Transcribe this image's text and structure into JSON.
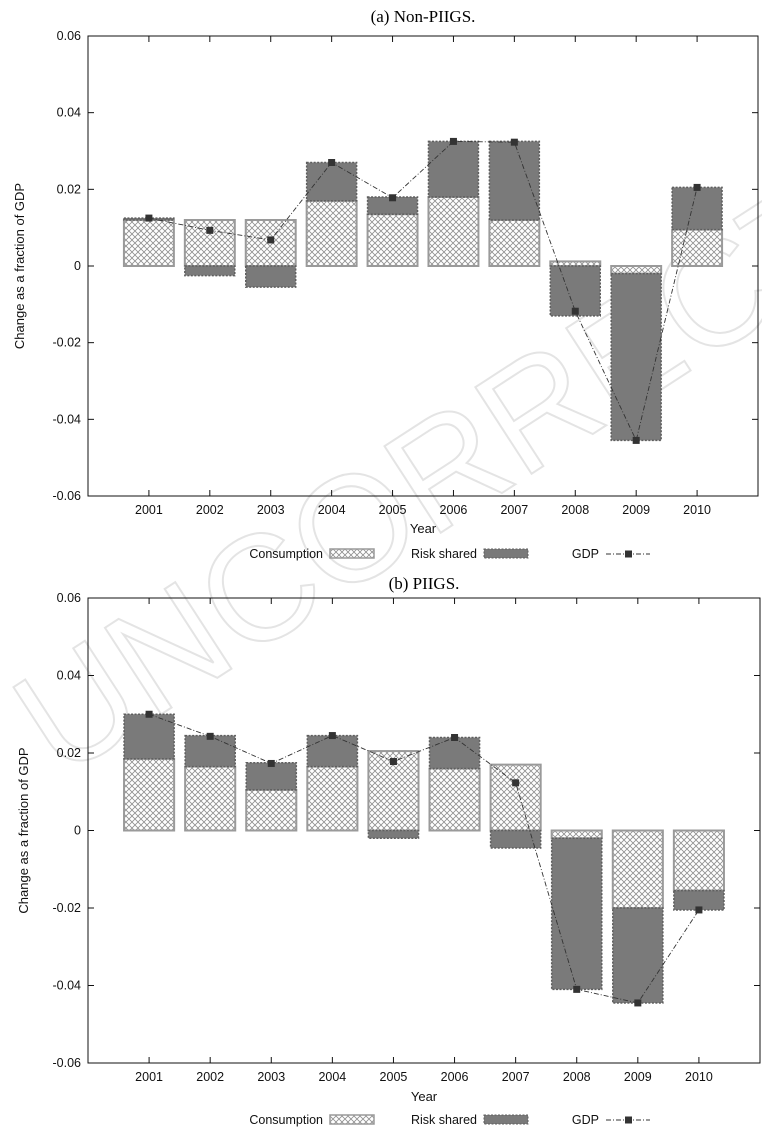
{
  "watermark": "UNCORRECTED PROOF",
  "colors": {
    "consumption_fill": "#ffffff",
    "consumption_hatch": "#8a8a8a",
    "consumption_border": "#9a9a9a",
    "risk_fill": "#7a7a7a",
    "gdp_line": "#333333",
    "gdp_marker": "#333333"
  },
  "chart_data": [
    {
      "type": "bar",
      "title": "(a) Non-PIIGS.",
      "xlabel": "Year",
      "ylabel": "Change as a fraction of GDP",
      "ylim": [
        -0.06,
        0.06
      ],
      "yticks": [
        "0.06",
        "0.04",
        "0.02",
        "0",
        "-0.02",
        "-0.04",
        "-0.06"
      ],
      "categories": [
        "2001",
        "2002",
        "2003",
        "2004",
        "2005",
        "2006",
        "2007",
        "2008",
        "2009",
        "2010"
      ],
      "legend": {
        "placement": "bottom",
        "consumption": "Consumption",
        "risk": "Risk shared",
        "gdp": "GDP"
      },
      "series": [
        {
          "name": "Consumption",
          "kind": "stacked-bar",
          "values": [
            0.012,
            0.012,
            0.012,
            0.017,
            0.0135,
            0.018,
            0.012,
            0.0012,
            -0.002,
            0.0095
          ]
        },
        {
          "name": "Risk shared",
          "kind": "stacked-bar",
          "values": [
            0.0005,
            -0.0025,
            -0.0055,
            0.01,
            0.0045,
            0.0145,
            0.0205,
            -0.013,
            -0.0435,
            0.011
          ]
        },
        {
          "name": "GDP",
          "kind": "line",
          "values": [
            0.0125,
            0.0093,
            0.0068,
            0.027,
            0.0178,
            0.0325,
            0.0323,
            -0.0118,
            -0.0455,
            0.0205
          ]
        }
      ]
    },
    {
      "type": "bar",
      "title": "(b) PIIGS.",
      "xlabel": "Year",
      "ylabel": "Change as a fraction of GDP",
      "ylim": [
        -0.06,
        0.06
      ],
      "yticks": [
        "0.06",
        "0.04",
        "0.02",
        "0",
        "-0.02",
        "-0.04",
        "-0.06"
      ],
      "categories": [
        "2001",
        "2002",
        "2003",
        "2004",
        "2005",
        "2006",
        "2007",
        "2008",
        "2009",
        "2010"
      ],
      "legend": {
        "placement": "bottom",
        "consumption": "Consumption",
        "risk": "Risk shared",
        "gdp": "GDP"
      },
      "series": [
        {
          "name": "Consumption",
          "kind": "stacked-bar",
          "values": [
            0.0185,
            0.0165,
            0.0105,
            0.0165,
            0.0205,
            0.016,
            0.017,
            -0.002,
            -0.02,
            -0.0155
          ]
        },
        {
          "name": "Risk shared",
          "kind": "stacked-bar",
          "values": [
            0.0115,
            0.008,
            0.007,
            0.008,
            -0.002,
            0.008,
            -0.0045,
            -0.039,
            -0.0245,
            -0.005
          ]
        },
        {
          "name": "GDP",
          "kind": "line",
          "values": [
            0.03,
            0.0243,
            0.0173,
            0.0245,
            0.0178,
            0.024,
            0.0123,
            -0.041,
            -0.0445,
            -0.0205
          ]
        }
      ]
    }
  ]
}
